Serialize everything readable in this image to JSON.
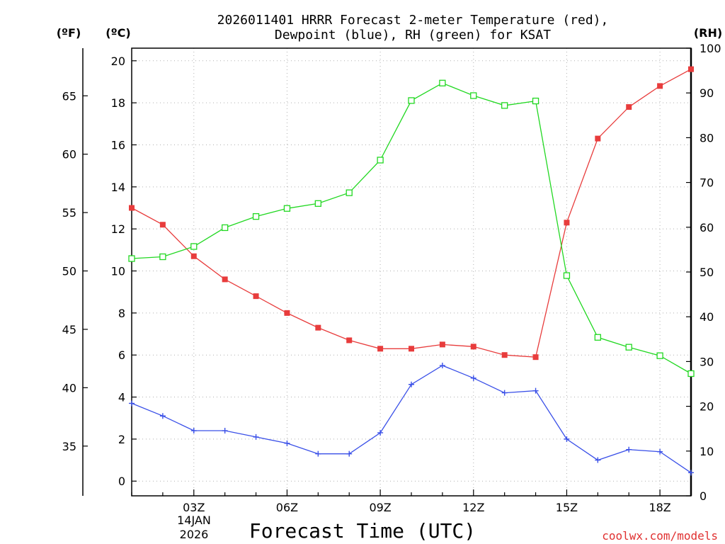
{
  "chart_data": {
    "type": "line",
    "title_line1": "2026011401 HRRR Forecast 2-meter Temperature (red),",
    "title_line2": "Dewpoint (blue), RH (green) for KSAT",
    "xlabel": "Forecast Time (UTC)",
    "unit_f": "(ºF)",
    "unit_c": "(ºC)",
    "unit_rh": "(RH)",
    "date_day": "14JAN",
    "date_year": "2026",
    "watermark": "coolwx.com/models",
    "x_hours": [
      1,
      2,
      3,
      4,
      5,
      6,
      7,
      8,
      9,
      10,
      11,
      12,
      13,
      14,
      15,
      16,
      17,
      18,
      19
    ],
    "xlim": [
      1,
      19
    ],
    "x_ticks": [
      {
        "hour": 3,
        "label": "03Z"
      },
      {
        "hour": 6,
        "label": "06Z"
      },
      {
        "hour": 9,
        "label": "09Z"
      },
      {
        "hour": 12,
        "label": "12Z"
      },
      {
        "hour": 15,
        "label": "15Z"
      },
      {
        "hour": 18,
        "label": "18Z"
      }
    ],
    "ylim_c": [
      -0.7,
      20.6
    ],
    "y_ticks_c": [
      "0",
      "2",
      "4",
      "6",
      "8",
      "10",
      "12",
      "14",
      "16",
      "18",
      "20"
    ],
    "y_ticks_f": [
      "35",
      "40",
      "45",
      "50",
      "55",
      "60",
      "65"
    ],
    "ylim_rh": [
      0,
      100
    ],
    "y_ticks_rh": [
      "0",
      "10",
      "20",
      "30",
      "40",
      "50",
      "60",
      "70",
      "80",
      "90",
      "100"
    ],
    "series": [
      {
        "name": "2-meter Temperature",
        "unit": "C",
        "axis": "left",
        "color": "#e83c3c",
        "marker": "filled-square",
        "values": [
          13.0,
          12.2,
          10.7,
          9.6,
          8.8,
          8.0,
          7.3,
          6.7,
          6.3,
          6.3,
          6.5,
          6.4,
          6.0,
          5.9,
          12.3,
          16.3,
          17.8,
          18.8,
          19.6
        ]
      },
      {
        "name": "Dewpoint",
        "unit": "C",
        "axis": "left",
        "color": "#3a50e8",
        "marker": "plus",
        "values": [
          3.7,
          3.1,
          2.4,
          2.4,
          2.1,
          1.8,
          1.3,
          1.3,
          2.3,
          4.6,
          5.5,
          4.9,
          4.2,
          4.3,
          2.0,
          1.0,
          1.5,
          1.4,
          0.4
        ]
      },
      {
        "name": "Relative Humidity",
        "unit": "%",
        "axis": "right",
        "color": "#22d822",
        "marker": "open-square",
        "values": [
          53.0,
          53.4,
          55.7,
          59.9,
          62.4,
          64.2,
          65.3,
          67.7,
          75.0,
          88.3,
          92.2,
          89.4,
          87.2,
          88.2,
          49.2,
          35.4,
          33.2,
          31.3,
          27.3
        ]
      }
    ]
  }
}
